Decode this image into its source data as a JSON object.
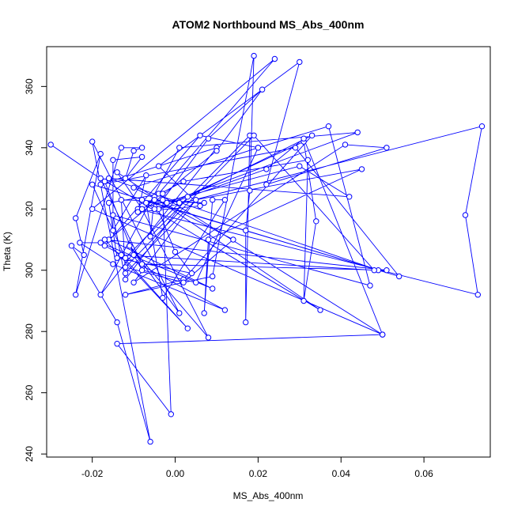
{
  "chart_data": {
    "type": "line",
    "markers": "open-circle",
    "title": "ATOM2 Northbound MS_Abs_400nm",
    "xlabel": "MS_Abs_400nm",
    "ylabel": "Theta (K)",
    "xlim": [
      -0.031,
      0.076
    ],
    "ylim": [
      239,
      373
    ],
    "xticks": [
      -0.02,
      0.0,
      0.02,
      0.04,
      0.06
    ],
    "xtick_labels": [
      "-0.02",
      "0.00",
      "0.02",
      "0.04",
      "0.06"
    ],
    "yticks": [
      240,
      260,
      280,
      300,
      320,
      340,
      360
    ],
    "ytick_labels": [
      "240",
      "260",
      "280",
      "300",
      "320",
      "340",
      "360"
    ],
    "grid": false,
    "color": "#0000ff",
    "series": [
      {
        "points": [
          [
            -0.03,
            341
          ],
          [
            -0.017,
            329
          ],
          [
            -0.01,
            305
          ],
          [
            -0.008,
            300
          ],
          [
            0.005,
            296
          ],
          [
            0.02,
            340
          ],
          [
            0.037,
            347
          ],
          [
            0.047,
            295
          ],
          [
            -0.015,
            318
          ],
          [
            -0.012,
            297
          ],
          [
            0.003,
            324
          ],
          [
            0.033,
            344
          ],
          [
            0.002,
            297
          ],
          [
            -0.012,
            292
          ],
          [
            0.009,
            298
          ],
          [
            0.019,
            370
          ],
          [
            0.018,
            326
          ],
          [
            0.017,
            313
          ],
          [
            0.017,
            283
          ],
          [
            0.018,
            344
          ],
          [
            -0.006,
            311
          ],
          [
            -0.005,
            324
          ],
          [
            0.002,
            329
          ],
          [
            0.032,
            336
          ],
          [
            0.031,
            290
          ],
          [
            0.034,
            316
          ],
          [
            0.031,
            342
          ],
          [
            -0.004,
            320
          ],
          [
            0.074,
            347
          ],
          [
            0.07,
            318
          ],
          [
            0.073,
            292
          ],
          [
            -0.009,
            320
          ],
          [
            0.03,
            334
          ],
          [
            0.042,
            324
          ],
          [
            -0.016,
            330
          ],
          [
            0.049,
            300
          ],
          [
            -0.02,
            328
          ],
          [
            -0.012,
            304
          ],
          [
            0.001,
            322
          ],
          [
            0.045,
            333
          ],
          [
            0.008,
            310
          ],
          [
            0.007,
            286
          ],
          [
            0.009,
            323
          ],
          [
            0.012,
            323
          ],
          [
            -0.003,
            291
          ],
          [
            -0.007,
            322
          ],
          [
            -0.002,
            322
          ],
          [
            0.044,
            345
          ],
          [
            0.001,
            340
          ],
          [
            -0.018,
            292
          ],
          [
            0.01,
            340
          ],
          [
            -0.018,
            328
          ],
          [
            0.029,
            340
          ],
          [
            0.054,
            298
          ],
          [
            -0.008,
            323
          ],
          [
            -0.005,
            320
          ],
          [
            0.022,
            333
          ],
          [
            0.031,
            343
          ],
          [
            0.05,
            279
          ],
          [
            -0.02,
            320
          ],
          [
            0.024,
            369
          ],
          [
            -0.004,
            325
          ],
          [
            0.05,
            279
          ],
          [
            -0.014,
            276
          ],
          [
            -0.001,
            253
          ],
          [
            -0.003,
            323
          ],
          [
            0.008,
            343
          ],
          [
            0.021,
            359
          ],
          [
            0.01,
            339
          ],
          [
            -0.016,
            310
          ],
          [
            0.009,
            294
          ],
          [
            -0.018,
            309
          ],
          [
            -0.023,
            309
          ],
          [
            -0.015,
            302
          ],
          [
            0.012,
            287
          ],
          [
            -0.017,
            308
          ],
          [
            0.006,
            344
          ],
          [
            0.02,
            340
          ],
          [
            -0.01,
            327
          ],
          [
            0.014,
            310
          ],
          [
            0.002,
            296
          ],
          [
            -0.012,
            301
          ],
          [
            0.019,
            344
          ],
          [
            0.048,
            300
          ],
          [
            -0.013,
            305
          ],
          [
            0.003,
            281
          ],
          [
            -0.017,
            310
          ],
          [
            0.051,
            300
          ],
          [
            -0.008,
            302
          ],
          [
            -0.018,
            330
          ],
          [
            0.035,
            287
          ],
          [
            -0.014,
            332
          ],
          [
            -0.008,
            320
          ],
          [
            0.008,
            278
          ],
          [
            -0.011,
            308
          ],
          [
            0.001,
            286
          ],
          [
            -0.02,
            342
          ],
          [
            -0.006,
            244
          ],
          [
            -0.014,
            283
          ],
          [
            -0.025,
            308
          ],
          [
            -0.022,
            305
          ],
          [
            -0.024,
            317
          ],
          [
            -0.018,
            338
          ],
          [
            -0.024,
            292
          ],
          [
            -0.013,
            340
          ],
          [
            -0.008,
            340
          ],
          [
            -0.01,
            339
          ],
          [
            -0.012,
            330
          ],
          [
            -0.008,
            337
          ],
          [
            -0.015,
            336
          ],
          [
            -0.015,
            313
          ],
          [
            -0.007,
            331
          ],
          [
            -0.009,
            319
          ],
          [
            0.006,
            321
          ],
          [
            -0.004,
            334
          ],
          [
            0.03,
            368
          ],
          [
            0.022,
            328
          ],
          [
            0.051,
            340
          ],
          [
            0.041,
            341
          ],
          [
            -0.01,
            296
          ],
          [
            0.005,
            323
          ],
          [
            -0.012,
            299
          ],
          [
            -0.013,
            323
          ],
          [
            0.007,
            322
          ],
          [
            -0.005,
            323
          ],
          [
            0.0,
            306
          ],
          [
            0.004,
            299
          ],
          [
            -0.014,
            304
          ],
          [
            -0.016,
            322
          ],
          [
            -0.003,
            325
          ]
        ]
      }
    ]
  }
}
